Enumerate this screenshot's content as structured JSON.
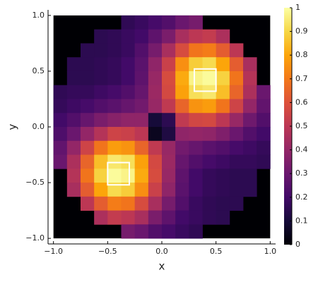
{
  "chart_data": {
    "type": "heatmap",
    "x_label": "x",
    "y_label": "y",
    "x": [
      -0.9375,
      -0.8125,
      -0.6875,
      -0.5625,
      -0.4375,
      -0.3125,
      -0.1875,
      -0.0625,
      0.0625,
      0.1875,
      0.3125,
      0.4375,
      0.5625,
      0.6875,
      0.8125,
      0.9375
    ],
    "y": [
      0.9375,
      0.8125,
      0.6875,
      0.5625,
      0.4375,
      0.3125,
      0.1875,
      0.0625,
      -0.0625,
      -0.1875,
      -0.3125,
      -0.4375,
      -0.5625,
      -0.6875,
      -0.8125,
      -0.9375
    ],
    "z": [
      [
        null,
        null,
        null,
        null,
        null,
        0.16,
        0.18,
        0.21,
        0.24,
        0.3,
        0.33,
        null,
        null,
        null,
        null,
        null
      ],
      [
        null,
        null,
        null,
        0.15,
        0.16,
        0.18,
        0.2,
        0.27,
        0.34,
        0.45,
        0.5,
        0.52,
        0.46,
        null,
        null,
        null
      ],
      [
        null,
        null,
        0.15,
        0.15,
        0.16,
        0.18,
        0.24,
        0.33,
        0.45,
        0.58,
        0.69,
        0.71,
        0.63,
        0.5,
        null,
        null
      ],
      [
        null,
        0.15,
        0.15,
        0.16,
        0.17,
        0.2,
        0.26,
        0.39,
        0.54,
        0.75,
        0.88,
        0.91,
        0.8,
        0.63,
        0.45,
        null
      ],
      [
        null,
        0.15,
        0.15,
        0.16,
        0.17,
        0.2,
        0.27,
        0.41,
        0.58,
        0.81,
        0.97,
        0.99,
        0.89,
        0.69,
        0.48,
        null
      ],
      [
        0.16,
        0.17,
        0.17,
        0.19,
        0.21,
        0.24,
        0.29,
        0.42,
        0.57,
        0.79,
        0.92,
        0.94,
        0.85,
        0.65,
        0.46,
        0.3
      ],
      [
        0.17,
        0.19,
        0.21,
        0.24,
        0.26,
        0.29,
        0.32,
        0.41,
        0.51,
        0.65,
        0.76,
        0.78,
        0.69,
        0.55,
        0.4,
        0.28
      ],
      [
        0.2,
        0.24,
        0.29,
        0.34,
        0.37,
        0.39,
        0.39,
        0.1,
        0.15,
        0.51,
        0.56,
        0.57,
        0.5,
        0.41,
        0.31,
        0.24
      ],
      [
        0.23,
        0.3,
        0.4,
        0.48,
        0.55,
        0.54,
        0.5,
        0.05,
        0.12,
        0.39,
        0.4,
        0.39,
        0.35,
        0.3,
        0.24,
        0.2
      ],
      [
        0.28,
        0.4,
        0.55,
        0.69,
        0.78,
        0.76,
        0.65,
        0.51,
        0.41,
        0.32,
        0.29,
        0.26,
        0.24,
        0.21,
        0.19,
        0.17
      ],
      [
        0.3,
        0.46,
        0.65,
        0.85,
        0.94,
        0.92,
        0.79,
        0.57,
        0.42,
        0.29,
        0.24,
        0.21,
        0.19,
        0.17,
        0.17,
        0.16
      ],
      [
        null,
        0.48,
        0.69,
        0.89,
        0.99,
        0.97,
        0.81,
        0.58,
        0.41,
        0.27,
        0.2,
        0.17,
        0.16,
        0.15,
        0.15,
        null
      ],
      [
        null,
        0.45,
        0.63,
        0.8,
        0.91,
        0.88,
        0.75,
        0.54,
        0.39,
        0.26,
        0.2,
        0.17,
        0.16,
        0.15,
        0.15,
        null
      ],
      [
        null,
        null,
        0.5,
        0.63,
        0.71,
        0.69,
        0.58,
        0.45,
        0.33,
        0.24,
        0.18,
        0.16,
        0.15,
        0.15,
        null,
        null
      ],
      [
        null,
        null,
        null,
        0.46,
        0.52,
        0.5,
        0.45,
        0.34,
        0.27,
        0.2,
        0.18,
        0.16,
        0.15,
        null,
        null,
        null
      ],
      [
        null,
        null,
        null,
        null,
        null,
        0.33,
        0.3,
        0.24,
        0.21,
        0.18,
        0.16,
        null,
        null,
        null,
        null,
        null
      ]
    ],
    "xlim": [
      -1.05,
      1.05
    ],
    "ylim": [
      -1.05,
      1.05
    ],
    "xticks": [
      {
        "value": -1,
        "label": "−1.0"
      },
      {
        "value": -0.5,
        "label": "−0.5"
      },
      {
        "value": 0,
        "label": "0.0"
      },
      {
        "value": 0.5,
        "label": "0.5"
      },
      {
        "value": 1,
        "label": "1.0"
      }
    ],
    "yticks": [
      {
        "value": -1,
        "label": "−1.0"
      },
      {
        "value": -0.5,
        "label": "−0.5"
      },
      {
        "value": 0,
        "label": "0.0"
      },
      {
        "value": 0.5,
        "label": "0.5"
      },
      {
        "value": 1,
        "label": "1.0"
      }
    ],
    "clim": [
      0,
      1
    ],
    "cticks": [
      0,
      0.1,
      0.2,
      0.3,
      0.4,
      0.5,
      0.6,
      0.7,
      0.8,
      0.9,
      1
    ],
    "colormap": [
      "#000004",
      "#160b39",
      "#420a68",
      "#6a176e",
      "#932667",
      "#bc3754",
      "#dd513a",
      "#f37819",
      "#fca50a",
      "#f6d746",
      "#fcffa4"
    ],
    "rectangles": [
      {
        "x": [
          0.3,
          0.5
        ],
        "y": [
          0.32,
          0.52
        ],
        "color": "#ffffff"
      },
      {
        "x": [
          -0.5,
          -0.3
        ],
        "y": [
          -0.52,
          -0.32
        ],
        "color": "#ffffff"
      }
    ]
  }
}
